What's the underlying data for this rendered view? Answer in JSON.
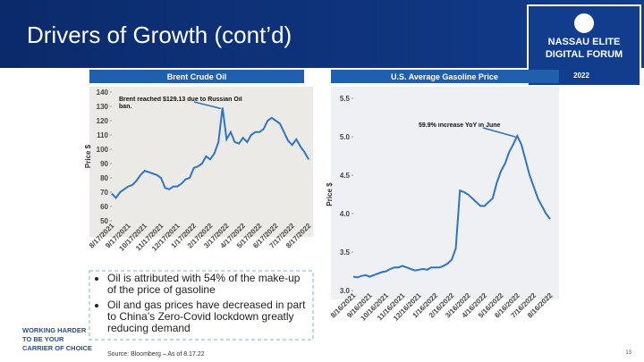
{
  "slide": {
    "title": "Drivers of Growth (cont’d)",
    "logo": {
      "name": "NASSAU ELITE DIGITAL FORUM",
      "year": "2022"
    },
    "bullets": [
      "Oil is attributed with 54% of the make-up of the price of gasoline",
      "Oil and gas prices have decreased in part to China’s Zero-Covid lockdown greatly reducing demand"
    ],
    "tagline": [
      "WORKING HARDER",
      "TO BE YOUR",
      "CARRIER OF CHOICE"
    ],
    "source": "Source: Bloomberg –  As of 8.17.22",
    "page": "13"
  },
  "chart_data": [
    {
      "type": "line",
      "title": "Brent Crude Oil",
      "ylabel": "Price $",
      "annotation": "Brent reached $129.13 due to Russian Oil ban.",
      "categories": [
        "8/17/2021",
        null,
        null,
        null,
        "9/17/2021",
        null,
        null,
        null,
        "10/17/2021",
        null,
        null,
        null,
        "11/17/2021",
        null,
        null,
        null,
        "12/17/2021",
        null,
        null,
        null,
        "1/17/2022",
        null,
        null,
        null,
        "2/17/2022",
        null,
        null,
        null,
        "3/17/2022",
        null,
        null,
        null,
        "4/17/2022",
        null,
        null,
        null,
        "5/17/2022",
        null,
        null,
        null,
        "6/17/2022",
        null,
        null,
        null,
        "7/17/2022",
        null,
        null,
        null,
        "8/17/2022"
      ],
      "series": [
        {
          "color": "#2e75c7",
          "values": [
            69,
            66,
            70,
            72,
            74,
            75,
            78,
            82,
            85,
            84,
            83,
            82,
            80,
            73,
            72,
            74,
            74,
            76,
            79,
            80,
            87,
            88,
            90,
            95,
            93,
            97,
            105,
            129.13,
            107,
            112,
            105,
            104,
            108,
            105,
            110,
            112,
            112,
            114,
            120,
            122,
            120,
            118,
            112,
            106,
            103,
            107,
            102,
            98,
            93
          ]
        }
      ],
      "ylim": [
        50,
        140
      ],
      "yticks": [
        50,
        60,
        70,
        80,
        90,
        100,
        110,
        120,
        130,
        140
      ]
    },
    {
      "type": "line",
      "title": "U.S. Average Gasoline Price",
      "ylabel": "Price $",
      "annotation": "59.9% increase YoY in June",
      "categories": [
        "8/16/2021",
        null,
        null,
        null,
        "9/16/2021",
        null,
        null,
        null,
        "10/16/2021",
        null,
        null,
        null,
        "11/16/2021",
        null,
        null,
        null,
        "12/16/2021",
        null,
        null,
        null,
        "1/16/2022",
        null,
        null,
        null,
        "2/16/2022",
        null,
        null,
        null,
        "3/16/2022",
        null,
        null,
        null,
        "4/16/2022",
        null,
        null,
        null,
        "5/16/2022",
        null,
        null,
        null,
        "6/16/2022",
        null,
        null,
        null,
        "7/16/2022",
        null,
        null,
        null,
        "8/16/2022"
      ],
      "series": [
        {
          "color": "#2e75c7",
          "values": [
            3.18,
            3.17,
            3.19,
            3.2,
            3.18,
            3.2,
            3.22,
            3.24,
            3.25,
            3.28,
            3.3,
            3.3,
            3.32,
            3.3,
            3.28,
            3.26,
            3.27,
            3.28,
            3.27,
            3.3,
            3.3,
            3.3,
            3.32,
            3.35,
            3.4,
            3.55,
            4.3,
            4.28,
            4.25,
            4.2,
            4.15,
            4.1,
            4.1,
            4.15,
            4.2,
            4.4,
            4.55,
            4.65,
            4.8,
            4.9,
            5.01,
            4.9,
            4.7,
            4.5,
            4.35,
            4.2,
            4.1,
            4,
            3.93
          ]
        }
      ],
      "ylim": [
        3,
        5.5
      ],
      "yticks": [
        {
          "value": 3,
          "label": "3.0"
        },
        3.5,
        {
          "value": 4,
          "label": "4.0"
        },
        4.5,
        {
          "value": 5,
          "label": "5.0"
        },
        5.5
      ]
    }
  ]
}
